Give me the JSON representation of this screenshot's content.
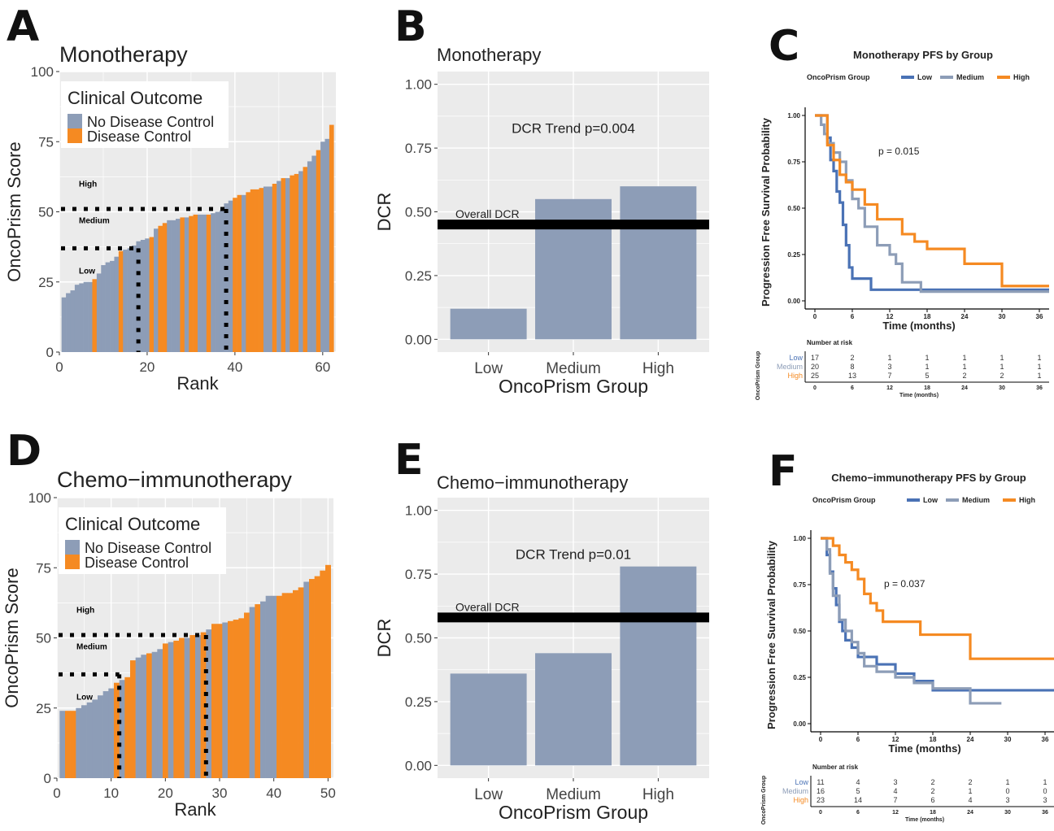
{
  "colors": {
    "no_control": "#8d9db7",
    "control": "#f58a22",
    "low": "#4a72b5",
    "medium": "#8d9db7",
    "high": "#f58a22",
    "panel_bg": "#ebebeb",
    "grid": "#ffffff"
  },
  "chart_data": [
    {
      "panel": "A",
      "type": "bar",
      "title": "Monotherapy",
      "xlabel": "Rank",
      "ylabel": "OncoPrism Score",
      "xlim": [
        0,
        63
      ],
      "ylim": [
        0,
        100
      ],
      "xticks": [
        0,
        20,
        40,
        60
      ],
      "yticks": [
        0,
        25,
        50,
        75,
        100
      ],
      "legend": {
        "title": "Clinical Outcome",
        "entries": [
          "No Disease Control",
          "Disease Control"
        ],
        "placement": "top-left"
      },
      "thresholds": [
        {
          "value": 37,
          "rank": 18
        },
        {
          "value": 51,
          "rank": 38
        }
      ],
      "group_labels": [
        "High",
        "Medium",
        "Low"
      ],
      "values": [
        19.5,
        21,
        22,
        24,
        24.5,
        25,
        25,
        26,
        28,
        31,
        32,
        32.5,
        34,
        36,
        36.5,
        37,
        38,
        39.5,
        40,
        40.5,
        41,
        44,
        45,
        46,
        47,
        47,
        47.5,
        48,
        48,
        48.5,
        49,
        49,
        49,
        49,
        49.5,
        50,
        50.5,
        53,
        54,
        55,
        56,
        56,
        57,
        58,
        58,
        58.5,
        59,
        59,
        60,
        61,
        62,
        62,
        63,
        63.5,
        64.5,
        66,
        68,
        70,
        72,
        75,
        76,
        81
      ],
      "outcome": [
        0,
        0,
        0,
        0,
        0,
        0,
        0,
        1,
        0,
        0,
        0,
        0,
        0,
        1,
        0,
        0,
        0,
        0,
        0,
        0,
        1,
        0,
        1,
        1,
        0,
        0,
        0,
        1,
        0,
        1,
        1,
        0,
        0,
        1,
        0,
        0,
        0,
        0,
        0,
        1,
        1,
        0,
        1,
        1,
        1,
        1,
        0,
        0,
        1,
        0,
        1,
        0,
        1,
        1,
        0,
        1,
        0,
        0,
        1,
        0,
        0,
        1
      ]
    },
    {
      "panel": "B",
      "type": "bar",
      "title": "Monotherapy",
      "xlabel": "OncoPrism Group",
      "ylabel": "DCR",
      "categories": [
        "Low",
        "Medium",
        "High"
      ],
      "values": [
        0.12,
        0.55,
        0.6
      ],
      "ylim": [
        0,
        1
      ],
      "yticks": [
        "0.00",
        "0.25",
        "0.50",
        "0.75",
        "1.00"
      ],
      "overall_dcr": 0.45,
      "overall_label": "Overall DCR",
      "annotation": "DCR Trend p=0.004"
    },
    {
      "panel": "C",
      "type": "line",
      "title": "Monotherapy PFS by Group",
      "legend_title": "OncoPrism Group",
      "xlabel": "Time (months)",
      "ylabel": "Progression Free Survival Probability",
      "xlim": [
        0,
        37
      ],
      "ylim": [
        0,
        1
      ],
      "xticks": [
        0,
        6,
        12,
        18,
        24,
        30,
        36
      ],
      "yticks": [
        "0.00",
        "0.25",
        "0.50",
        "0.75",
        "1.00"
      ],
      "pvalue": "p = 0.015",
      "series": [
        {
          "name": "Low",
          "x": [
            0,
            1.5,
            2,
            2.5,
            3,
            3.5,
            4,
            4.5,
            5,
            5.5,
            6,
            9,
            38
          ],
          "y": [
            1,
            1,
            0.88,
            0.76,
            0.7,
            0.59,
            0.53,
            0.41,
            0.3,
            0.18,
            0.12,
            0.06,
            0.06
          ]
        },
        {
          "name": "Medium",
          "x": [
            0,
            1,
            1.5,
            2,
            3,
            4,
            5,
            6,
            7,
            8,
            10,
            12,
            13,
            14,
            17,
            38
          ],
          "y": [
            1,
            0.95,
            0.9,
            0.85,
            0.8,
            0.75,
            0.65,
            0.55,
            0.5,
            0.4,
            0.3,
            0.25,
            0.2,
            0.1,
            0.05,
            0.05
          ]
        },
        {
          "name": "High",
          "x": [
            0,
            2,
            3,
            4,
            5,
            6,
            8,
            10,
            14,
            16,
            18,
            24,
            30,
            38
          ],
          "y": [
            1,
            0.84,
            0.76,
            0.68,
            0.64,
            0.6,
            0.52,
            0.44,
            0.36,
            0.32,
            0.28,
            0.2,
            0.08,
            0.08
          ]
        }
      ],
      "risk_table": {
        "title": "Number at risk",
        "ylabel": "OncoPrism Group",
        "xlabel": "Time (months)",
        "times": [
          0,
          6,
          12,
          18,
          24,
          30,
          36
        ],
        "rows": [
          {
            "name": "Low",
            "counts": [
              "17",
              "2",
              "1",
              "1",
              "1",
              "1",
              "1"
            ]
          },
          {
            "name": "Medium",
            "counts": [
              "20",
              "8",
              "3",
              "1",
              "1",
              "1",
              "1"
            ]
          },
          {
            "name": "High",
            "counts": [
              "25",
              "13",
              "7",
              "5",
              "2",
              "2",
              "1"
            ]
          }
        ]
      }
    },
    {
      "panel": "D",
      "type": "bar",
      "title": "Chemo−immunotherapy",
      "xlabel": "Rank",
      "ylabel": "OncoPrism Score",
      "xlim": [
        0,
        51
      ],
      "ylim": [
        0,
        100
      ],
      "xticks": [
        0,
        10,
        20,
        30,
        40,
        50
      ],
      "yticks": [
        0,
        25,
        50,
        75,
        100
      ],
      "legend": {
        "title": "Clinical Outcome",
        "entries": [
          "No Disease Control",
          "Disease Control"
        ],
        "placement": "top-left"
      },
      "thresholds": [
        {
          "value": 37,
          "rank": 11.5
        },
        {
          "value": 51,
          "rank": 27.5
        }
      ],
      "group_labels": [
        "High",
        "Medium",
        "Low"
      ],
      "values": [
        24,
        24,
        24,
        25,
        26,
        27,
        28,
        29.5,
        31,
        32,
        34,
        35,
        36,
        42,
        43,
        44,
        44.5,
        45,
        46,
        48,
        48.5,
        49,
        50,
        50,
        51,
        51,
        52,
        53,
        55,
        55,
        55.5,
        56,
        56.5,
        57,
        59,
        61,
        62,
        63,
        65,
        65,
        65,
        66,
        66,
        67,
        68,
        70,
        71,
        72,
        74,
        76
      ],
      "outcome": [
        0,
        1,
        1,
        0,
        0,
        0,
        0,
        0,
        0,
        0,
        1,
        0,
        1,
        1,
        0,
        0,
        1,
        0,
        0,
        1,
        0,
        1,
        1,
        0,
        1,
        0,
        1,
        0,
        1,
        1,
        0,
        1,
        1,
        1,
        1,
        0,
        1,
        0,
        0,
        0,
        1,
        1,
        1,
        1,
        1,
        0,
        1,
        1,
        1,
        1
      ]
    },
    {
      "panel": "E",
      "type": "bar",
      "title": "Chemo−immunotherapy",
      "xlabel": "OncoPrism Group",
      "ylabel": "DCR",
      "categories": [
        "Low",
        "Medium",
        "High"
      ],
      "values": [
        0.36,
        0.44,
        0.78
      ],
      "ylim": [
        0,
        1
      ],
      "yticks": [
        "0.00",
        "0.25",
        "0.50",
        "0.75",
        "1.00"
      ],
      "overall_dcr": 0.58,
      "overall_label": "Overall DCR",
      "annotation": "DCR Trend p=0.01"
    },
    {
      "panel": "F",
      "type": "line",
      "title": "Chemo−immunotherapy PFS by Group",
      "legend_title": "OncoPrism Group",
      "xlabel": "Time (months)",
      "ylabel": "Progression Free Survival Probability",
      "xlim": [
        0,
        37
      ],
      "ylim": [
        0,
        1
      ],
      "xticks": [
        0,
        6,
        12,
        18,
        24,
        30,
        36
      ],
      "yticks": [
        "0.00",
        "0.25",
        "0.50",
        "0.75",
        "1.00"
      ],
      "pvalue": "p = 0.037",
      "series": [
        {
          "name": "Low",
          "x": [
            0,
            1,
            1.5,
            2,
            2.5,
            3,
            3.5,
            4,
            5,
            6,
            9,
            12,
            15,
            18,
            38
          ],
          "y": [
            1,
            0.91,
            0.82,
            0.73,
            0.64,
            0.55,
            0.5,
            0.45,
            0.41,
            0.36,
            0.32,
            0.27,
            0.23,
            0.18,
            0.18
          ]
        },
        {
          "name": "Medium",
          "x": [
            0,
            1,
            1.5,
            2,
            3,
            4,
            5,
            6,
            7,
            9,
            12,
            15,
            18,
            24,
            29
          ],
          "y": [
            1,
            0.94,
            0.81,
            0.69,
            0.56,
            0.5,
            0.44,
            0.38,
            0.31,
            0.28,
            0.25,
            0.22,
            0.19,
            0.11,
            0.11
          ]
        },
        {
          "name": "High",
          "x": [
            0,
            2,
            3,
            4,
            5,
            6,
            7,
            8,
            9,
            10,
            16,
            24,
            38
          ],
          "y": [
            1,
            0.96,
            0.91,
            0.87,
            0.83,
            0.78,
            0.7,
            0.65,
            0.61,
            0.55,
            0.48,
            0.35,
            0.35
          ]
        }
      ],
      "risk_table": {
        "title": "Number at risk",
        "ylabel": "OncoPrism Group",
        "xlabel": "Time (months)",
        "times": [
          0,
          6,
          12,
          18,
          24,
          30,
          36
        ],
        "rows": [
          {
            "name": "Low",
            "counts": [
              "11",
              "4",
              "3",
              "2",
              "2",
              "1",
              "1"
            ]
          },
          {
            "name": "Medium",
            "counts": [
              "16",
              "5",
              "4",
              "2",
              "1",
              "0",
              "0"
            ]
          },
          {
            "name": "High",
            "counts": [
              "23",
              "14",
              "7",
              "6",
              "4",
              "3",
              "3"
            ]
          }
        ]
      }
    }
  ]
}
